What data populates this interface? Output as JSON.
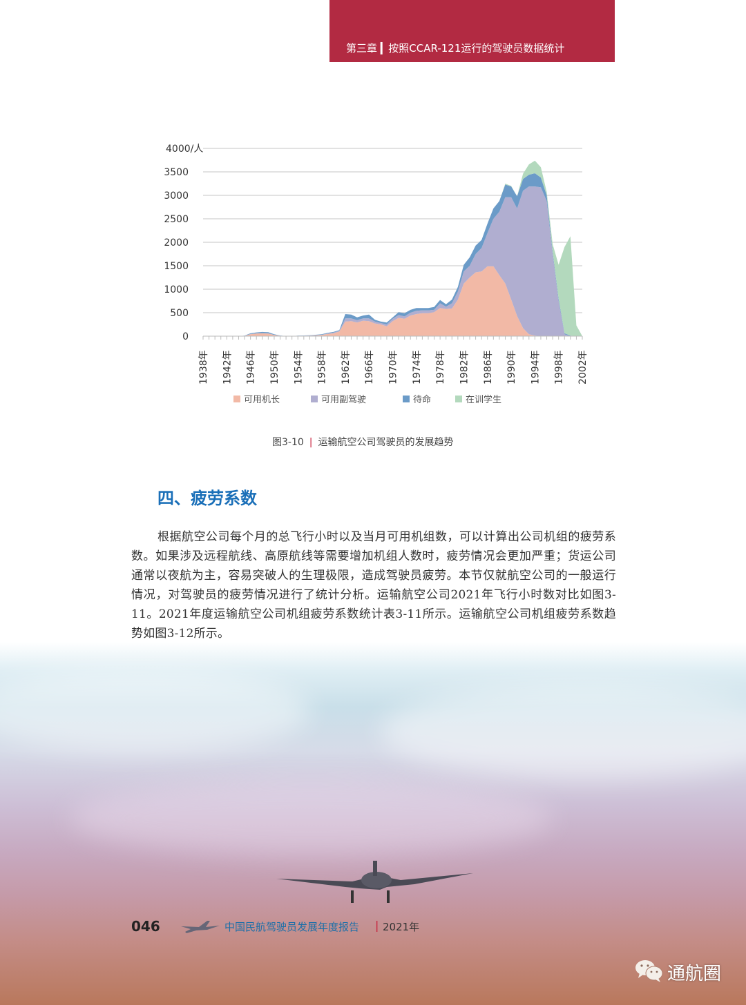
{
  "header": {
    "chapter": "第三章 ▎按照CCAR-121运行的驾驶员数据统计",
    "color": "#b22a42"
  },
  "chart_data": {
    "type": "area",
    "stacked": true,
    "title": "",
    "xlabel": "",
    "ylabel": "",
    "y_unit_label": "4000/人",
    "ylim": [
      0,
      4000
    ],
    "yticks": [
      "0",
      "500",
      "1000",
      "1500",
      "2000",
      "2500",
      "3000",
      "3500",
      "4000/人"
    ],
    "ytick_values": [
      0,
      500,
      1000,
      1500,
      2000,
      2500,
      3000,
      3500,
      4000
    ],
    "grid": true,
    "legend_position": "bottom",
    "x_start": 1938,
    "x_end": 2002,
    "xtick_labels": [
      "1938年",
      "1942年",
      "1946年",
      "1950年",
      "1954年",
      "1958年",
      "1962年",
      "1966年",
      "1970年",
      "1974年",
      "1978年",
      "1982年",
      "1986年",
      "1990年",
      "1994年",
      "1998年",
      "2002年"
    ],
    "xtick_years": [
      1938,
      1942,
      1946,
      1950,
      1954,
      1958,
      1962,
      1966,
      1970,
      1974,
      1978,
      1982,
      1986,
      1990,
      1994,
      1998,
      2002
    ],
    "series": [
      {
        "name": "可用机长",
        "color": "#f2b9a6",
        "values": [
          0,
          0,
          0,
          0,
          0,
          0,
          0,
          5,
          40,
          55,
          60,
          55,
          25,
          8,
          0,
          0,
          5,
          8,
          12,
          15,
          25,
          45,
          60,
          100,
          310,
          320,
          290,
          330,
          320,
          270,
          250,
          210,
          320,
          390,
          370,
          440,
          470,
          490,
          490,
          510,
          600,
          580,
          590,
          780,
          1120,
          1250,
          1360,
          1380,
          1490,
          1490,
          1300,
          1120,
          780,
          430,
          170,
          40,
          10,
          0,
          0,
          0,
          0,
          0,
          0,
          0,
          0
        ]
      },
      {
        "name": "可用副驾驶",
        "color": "#b0aed0",
        "values": [
          0,
          0,
          0,
          0,
          0,
          0,
          0,
          2,
          5,
          5,
          5,
          5,
          3,
          2,
          0,
          0,
          2,
          2,
          3,
          5,
          5,
          10,
          15,
          15,
          70,
          60,
          50,
          50,
          60,
          40,
          30,
          40,
          50,
          60,
          50,
          60,
          70,
          60,
          60,
          50,
          100,
          50,
          110,
          170,
          260,
          250,
          390,
          500,
          710,
          1010,
          1350,
          1840,
          2180,
          2290,
          2930,
          3150,
          3180,
          3170,
          2880,
          1750,
          750,
          40,
          0,
          0,
          0
        ]
      },
      {
        "name": "待命",
        "color": "#6b9bc8",
        "values": [
          0,
          0,
          0,
          0,
          0,
          0,
          0,
          3,
          15,
          20,
          25,
          25,
          12,
          5,
          0,
          0,
          3,
          5,
          5,
          10,
          10,
          15,
          15,
          15,
          90,
          80,
          60,
          60,
          80,
          40,
          30,
          40,
          30,
          60,
          70,
          60,
          60,
          50,
          50,
          60,
          70,
          50,
          80,
          100,
          140,
          180,
          180,
          170,
          200,
          220,
          230,
          270,
          230,
          260,
          250,
          250,
          280,
          210,
          120,
          50,
          50,
          20,
          10,
          0,
          0
        ]
      },
      {
        "name": "在训学生",
        "color": "#b3d9bd",
        "values": [
          0,
          0,
          0,
          0,
          0,
          0,
          0,
          0,
          0,
          0,
          0,
          0,
          0,
          0,
          0,
          0,
          0,
          0,
          0,
          0,
          0,
          0,
          0,
          0,
          0,
          0,
          0,
          0,
          0,
          0,
          0,
          0,
          0,
          0,
          0,
          0,
          0,
          0,
          0,
          0,
          0,
          0,
          0,
          0,
          0,
          0,
          0,
          0,
          0,
          0,
          0,
          20,
          10,
          0,
          110,
          220,
          270,
          220,
          70,
          160,
          720,
          1840,
          2120,
          230,
          0
        ]
      }
    ]
  },
  "caption": {
    "figure": "图3-10",
    "separator": "|",
    "text": "运输航空公司驾驶员的发展趋势"
  },
  "section": {
    "title": "四、疲劳系数",
    "color": "#1a6fb8"
  },
  "paragraph": "根据航空公司每个月的总飞行小时以及当月可用机组数，可以计算出公司机组的疲劳系数。如果涉及远程航线、高原航线等需要增加机组人数时，疲劳情况会更加严重；货运公司通常以夜航为主，容易突破人的生理极限，造成驾驶员疲劳。本节仅就航空公司的一般运行情况，对驾驶员的疲劳情况进行了统计分析。运输航空公司2021年飞行小时数对比如图3-11。2021年度运输航空公司机组疲劳系数统计表3-11所示。运输航空公司机组疲劳系数趋势如图3-12所示。",
  "footer": {
    "page": "046",
    "title": "中国民航驾驶员发展年度报告",
    "separator": "|",
    "year": "2021年"
  },
  "watermark": {
    "icon": "wechat-icon",
    "text": "通航圈"
  }
}
